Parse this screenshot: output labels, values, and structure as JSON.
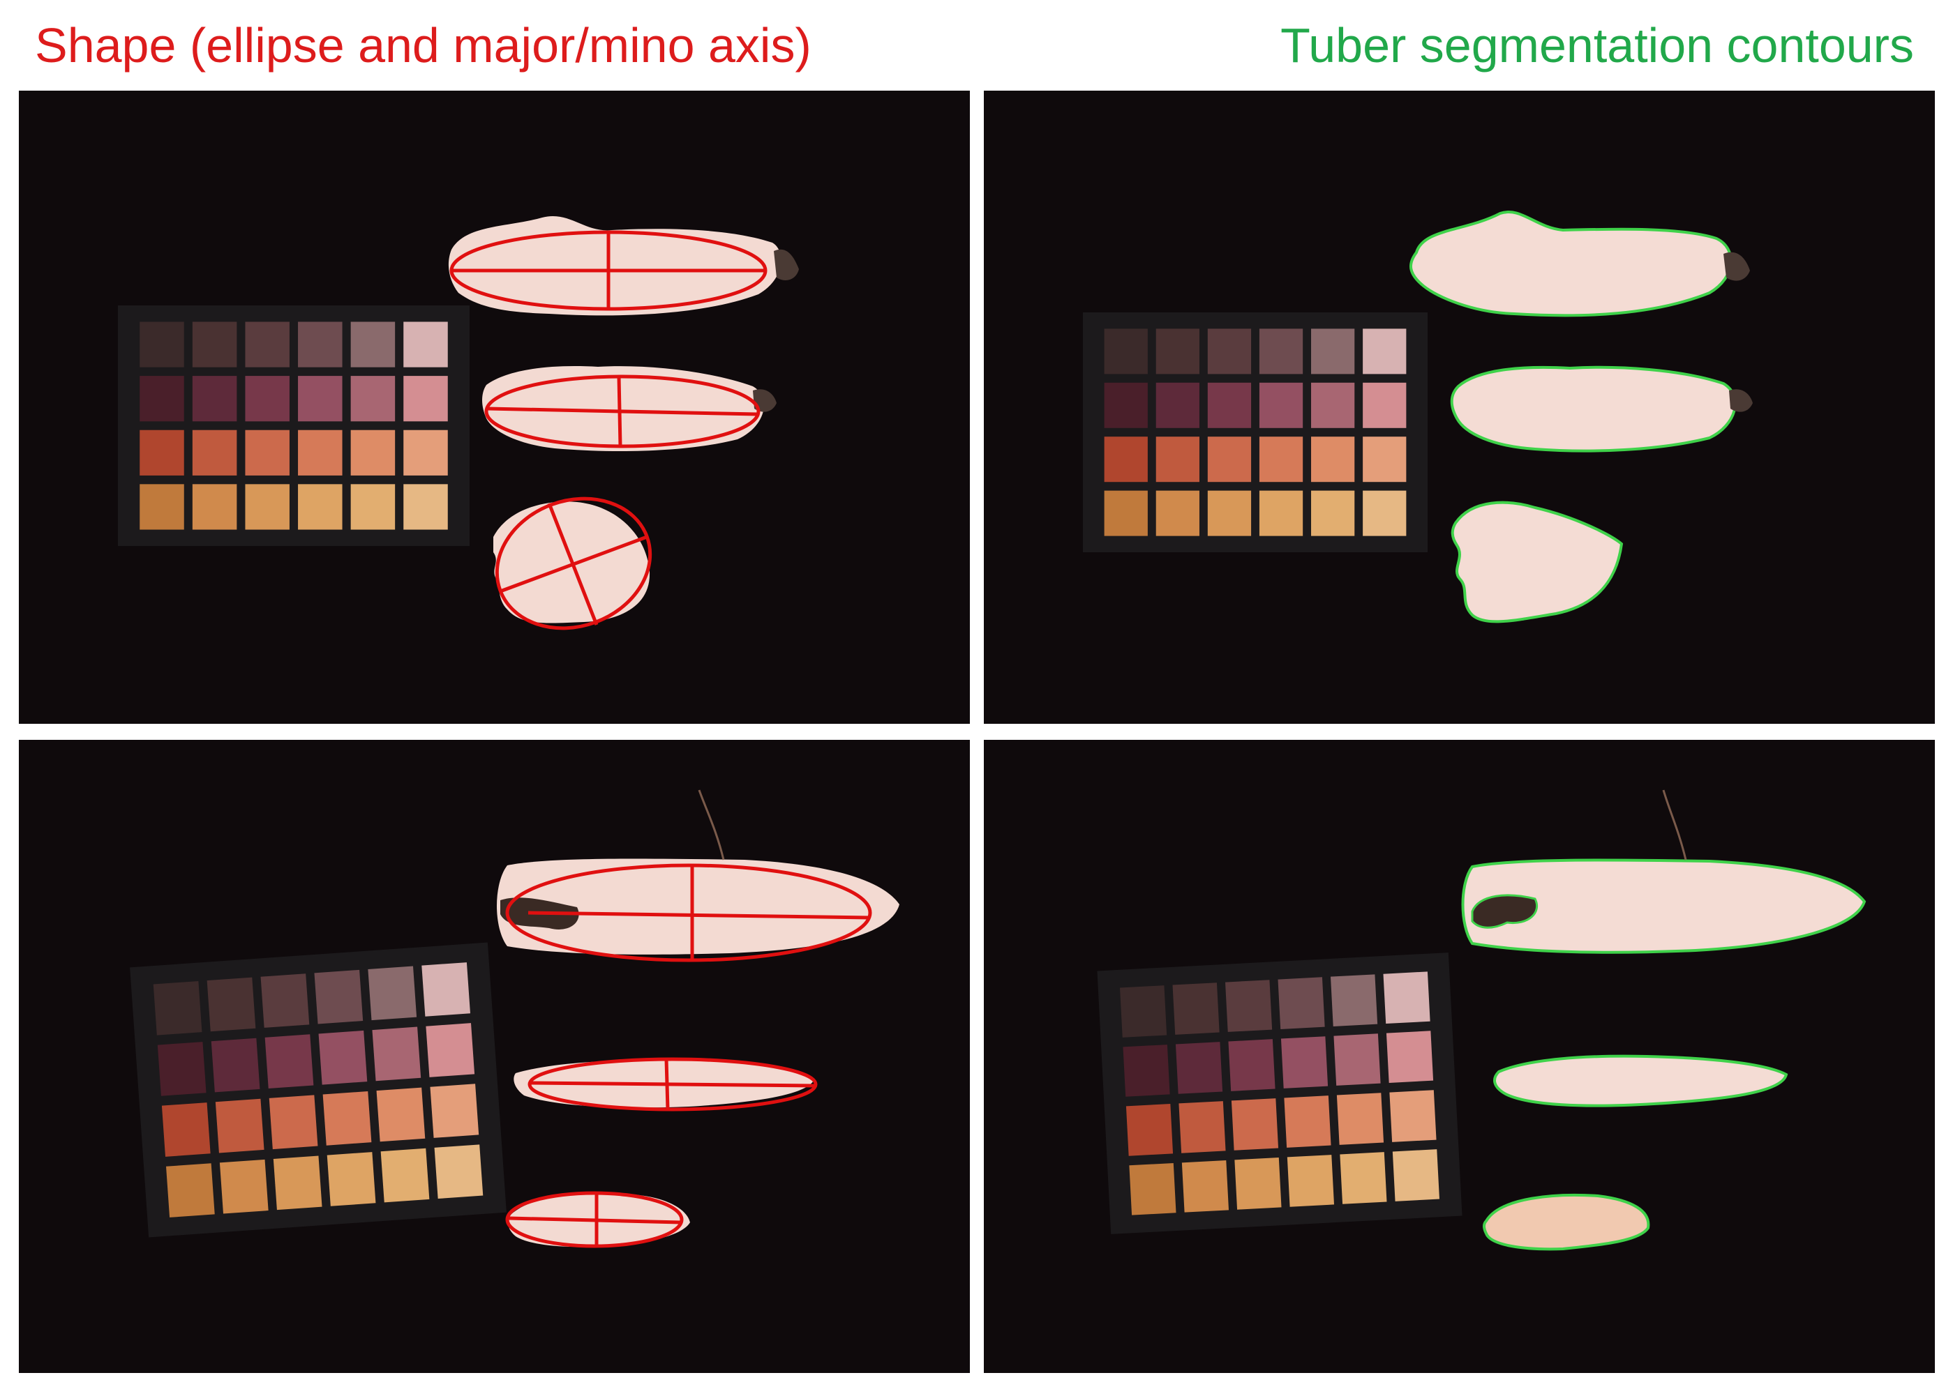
{
  "titles": {
    "left": "Shape (ellipse and major/mino axis)",
    "right": "Tuber segmentation contours"
  },
  "colors": {
    "title_left": "#dd1c1c",
    "title_right": "#21a84a",
    "background": "#0f0a0c",
    "annotation_red": "#e01010",
    "contour_green": "#3fd24a",
    "tuber_flesh": "#f4dcd4"
  },
  "color_card": {
    "rows": [
      [
        "#3b2a2a",
        "#4a3232",
        "#5a3c3e",
        "#6e4c50",
        "#8a6a6c",
        "#d7b2b2"
      ],
      [
        "#4a1f2a",
        "#5e2a3a",
        "#77384a",
        "#945062",
        "#a86672",
        "#d48e92"
      ],
      [
        "#b0462e",
        "#c05a3e",
        "#cc6a4c",
        "#d67a58",
        "#de8c66",
        "#e49e7a"
      ],
      [
        "#c07a3c",
        "#d08a4c",
        "#d89858",
        "#dea464",
        "#e2ae70",
        "#e6b884"
      ]
    ]
  },
  "panels": [
    {
      "name": "panel-top-left-ellipse",
      "kind": "ellipse",
      "scene": "set1"
    },
    {
      "name": "panel-top-right-contour",
      "kind": "contour",
      "scene": "set1"
    },
    {
      "name": "panel-bottom-left-ellipse",
      "kind": "ellipse",
      "scene": "set2"
    },
    {
      "name": "panel-bottom-right-contour",
      "kind": "contour",
      "scene": "set2"
    }
  ]
}
